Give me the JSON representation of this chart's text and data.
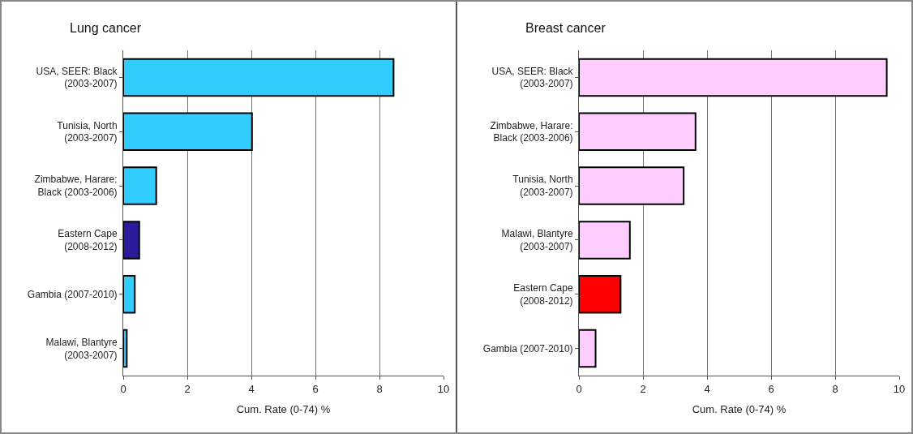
{
  "chart_data": [
    {
      "type": "bar",
      "orientation": "horizontal",
      "title": "Lung cancer",
      "xlabel": "Cum. Rate (0-74) %",
      "categories": [
        "USA, SEER: Black (2003-2007)",
        "Tunisia, North (2003-2007)",
        "Zimbabwe, Harare: Black (2003-2006)",
        "Eastern Cape (2008-2012)",
        "Gambia (2007-2010)",
        "Malawi, Blantyre (2003-2007)"
      ],
      "values": [
        8.44,
        4.02,
        1.03,
        0.5,
        0.36,
        0.11
      ],
      "colors": [
        "#33ccff",
        "#33ccff",
        "#33ccff",
        "#2b1a99",
        "#33ccff",
        "#33ccff"
      ],
      "xlim": [
        0,
        10
      ],
      "xticks": [
        0,
        2,
        4,
        6,
        8,
        10
      ],
      "grid": "x"
    },
    {
      "type": "bar",
      "orientation": "horizontal",
      "title": "Breast cancer",
      "xlabel": "Cum. Rate (0-74) %",
      "categories": [
        "USA, SEER: Black (2003-2007)",
        "Zimbabwe, Harare: Black (2003-2006)",
        "Tunisia, North (2003-2007)",
        "Malawi, Blantyre (2003-2007)",
        "Eastern Cape (2008-2012)",
        "Gambia (2007-2010)"
      ],
      "values": [
        9.61,
        3.64,
        3.27,
        1.59,
        1.3,
        0.52
      ],
      "colors": [
        "#ffccff",
        "#ffccff",
        "#ffccff",
        "#ffccff",
        "#ff0000",
        "#ffccff"
      ],
      "xlim": [
        0,
        10
      ],
      "xticks": [
        0,
        2,
        4,
        6,
        8,
        10
      ],
      "grid": "x"
    }
  ]
}
